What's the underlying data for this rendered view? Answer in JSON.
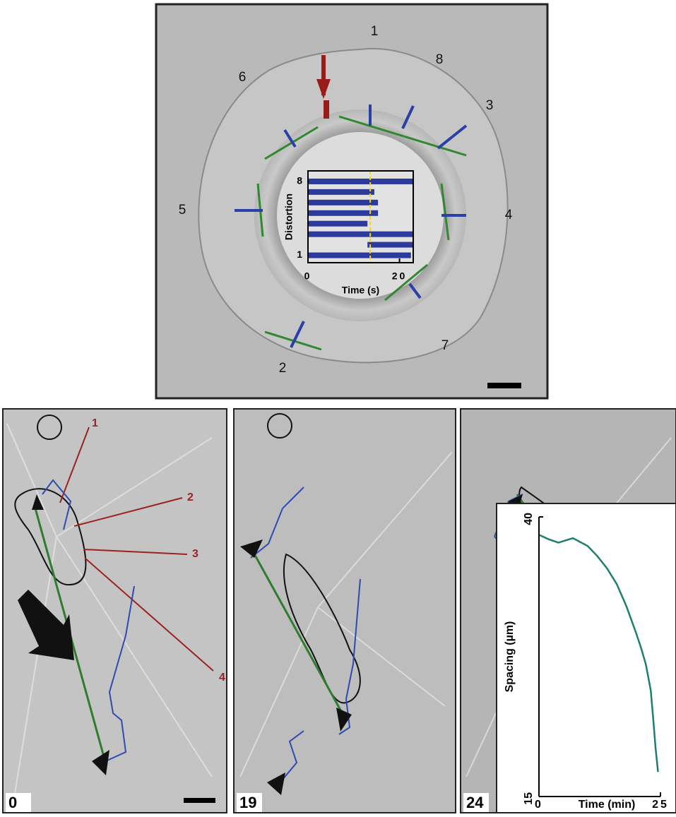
{
  "top_panel": {
    "region_labels": [
      "1",
      "2",
      "3",
      "4",
      "5",
      "6",
      "7",
      "8"
    ]
  },
  "bottom_panels": {
    "time_labels": [
      "0",
      "19",
      "24"
    ],
    "region_labels": [
      "1",
      "2",
      "3",
      "4"
    ]
  },
  "chart_data": [
    {
      "type": "timeline",
      "xlabel": "Time (s)",
      "ylabel": "Distortion",
      "y": [
        1,
        2,
        3,
        4,
        5,
        6,
        7,
        8
      ],
      "start": [
        0,
        13,
        0,
        0,
        0,
        0,
        0,
        0
      ],
      "end": [
        22.5,
        23,
        23,
        13,
        15.3,
        15.3,
        14.5,
        23
      ],
      "color": "#2c3a9c",
      "marker_x": 13.6,
      "marker_color": "#f2d21b",
      "xlim": [
        0,
        23
      ],
      "ylim": [
        0.3,
        9
      ],
      "xticks": [
        0,
        20
      ],
      "yticks": [
        1,
        8
      ]
    },
    {
      "type": "line",
      "xlabel": "Time (min)",
      "ylabel": "Spacing (µm)",
      "x": [
        0,
        2,
        4,
        7,
        10,
        12,
        14,
        16,
        18,
        19,
        20,
        21,
        22,
        23,
        23.5,
        24,
        24.5
      ],
      "values": [
        38.4,
        38,
        37.7,
        38.1,
        37.4,
        36.5,
        35.4,
        34,
        32,
        30.8,
        29.6,
        28.3,
        26.8,
        24.5,
        22,
        19.3,
        17.2
      ],
      "color": "#1f7f6e",
      "xlim": [
        0,
        25
      ],
      "ylim": [
        15,
        40
      ],
      "xticks": [
        0,
        25
      ],
      "yticks": [
        15,
        40
      ]
    }
  ]
}
